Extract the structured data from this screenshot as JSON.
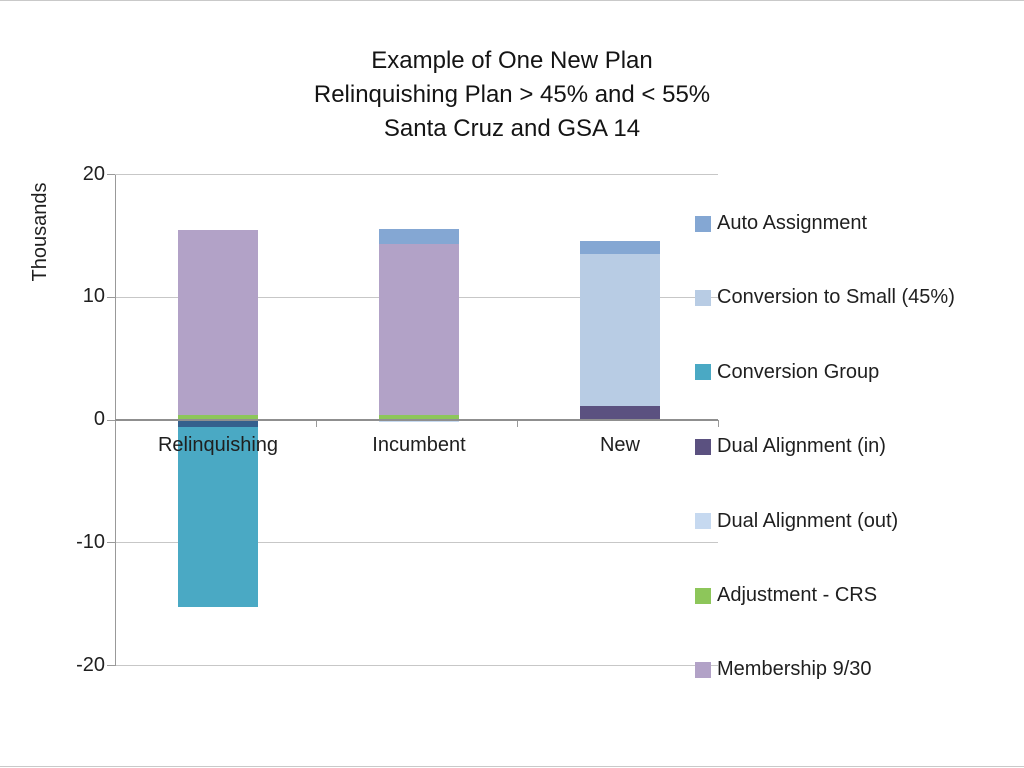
{
  "title": {
    "lines": [
      "Example of One New Plan",
      "Relinquishing Plan > 45% and < 55%",
      "Santa Cruz and GSA 14"
    ]
  },
  "y_axis": {
    "label": "Thousands",
    "ticks": [
      20,
      10,
      0,
      -10,
      -20
    ]
  },
  "colors": {
    "grid": "#c7c7c7",
    "axis": "#999999",
    "zero_line": "#8f8f8f",
    "text": "#1f1f1f"
  },
  "legend": {
    "position": "right",
    "items": [
      {
        "label": "Auto Assignment",
        "color": "#84a7d3"
      },
      {
        "label": "Conversion to Small (45%)",
        "color": "#b8cce4"
      },
      {
        "label": "Conversion Group",
        "color": "#4aa9c4"
      },
      {
        "label": "Dual Alignment (in)",
        "color": "#5b5180"
      },
      {
        "label": "Dual Alignment (out)",
        "color": "#c6d9f0"
      },
      {
        "label": "Adjustment - CRS",
        "color": "#8dc65a"
      },
      {
        "label": "Membership 9/30",
        "color": "#b2a2c7"
      }
    ]
  },
  "chart_data": {
    "type": "bar",
    "stacked": true,
    "title": "Example of One New Plan / Relinquishing Plan > 45% and < 55% / Santa Cruz and GSA 14",
    "xlabel": "",
    "ylabel": "Thousands",
    "ylim": [
      -20,
      20
    ],
    "grid": true,
    "legend_position": "right",
    "categories": [
      "Relinquishing",
      "Incumbent",
      "New"
    ],
    "series": [
      "Auto Assignment",
      "Conversion to Small (45%)",
      "Conversion Group",
      "Dual Alignment (in)",
      "Dual Alignment (out)",
      "Adjustment - CRS",
      "Membership 9/30"
    ],
    "series_colors": {
      "Auto Assignment": "#84a7d3",
      "Conversion to Small (45%)": "#b8cce4",
      "Conversion Group": "#4aa9c4",
      "Dual Alignment (in)": "#5b5180",
      "Dual Alignment (out)": "#c6d9f0",
      "Adjustment - CRS": "#8dc65a",
      "Membership 9/30": "#b2a2c7"
    },
    "bars": [
      {
        "category": "Relinquishing",
        "segments": [
          {
            "series": "Adjustment - CRS",
            "value": 0.4
          },
          {
            "series": "Membership 9/30",
            "value": 15.05
          },
          {
            "series": "Dual Alignment (in)",
            "value": -0.55,
            "color": "#35608d"
          },
          {
            "series": "Conversion Group",
            "value": -14.65
          }
        ]
      },
      {
        "category": "Incumbent",
        "segments": [
          {
            "series": "Adjustment - CRS",
            "value": 0.4
          },
          {
            "series": "Membership 9/30",
            "value": 13.9
          },
          {
            "series": "Auto Assignment",
            "value": 1.3
          },
          {
            "series": "Dual Alignment (out)",
            "value": -0.2
          }
        ]
      },
      {
        "category": "New",
        "segments": [
          {
            "series": "Dual Alignment (in)",
            "value": 1.1
          },
          {
            "series": "Conversion to Small (45%)",
            "value": 12.4
          },
          {
            "series": "Auto Assignment",
            "value": 1.05
          }
        ]
      }
    ]
  }
}
